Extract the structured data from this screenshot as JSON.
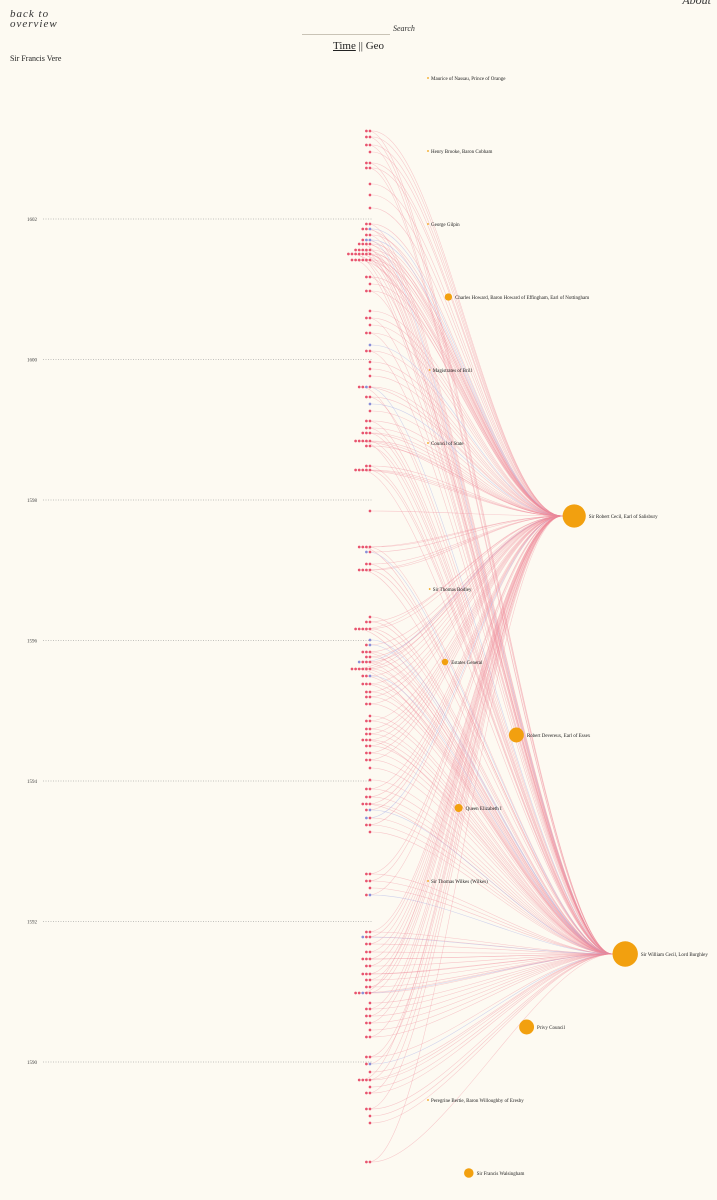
{
  "nav": {
    "back_label_line1": "back to",
    "back_label_line2": "overview",
    "about_label": "About"
  },
  "search": {
    "label": "Search",
    "value": "",
    "placeholder": ""
  },
  "view_toggle": {
    "time_label": "Time",
    "separator": "||",
    "geo_label": "Geo",
    "active": "Time"
  },
  "person": {
    "name": "Sir Francis Vere"
  },
  "timeline": {
    "years": [
      "1602",
      "1600",
      "1598",
      "1596",
      "1594",
      "1592",
      "1590"
    ]
  },
  "colors": {
    "letter_dot": "#e8546f",
    "letter_dot_alt": "#8a8fd8",
    "edge": "#f08a9a",
    "edge_alt": "#a9b0e8",
    "node": "#f2a00f",
    "gridline": "#888888",
    "background": "#fdfaf2"
  },
  "recipients": [
    {
      "name": "Maurice of Nassau, Prince of Orange",
      "weight": 0
    },
    {
      "name": "Henry Brooke, Baron Cobham",
      "weight": 0
    },
    {
      "name": "George Gilpin",
      "weight": 0
    },
    {
      "name": "Charles Howard, Baron Howard of Effingham, Earl of Nottingham",
      "weight": 2
    },
    {
      "name": "Magistrates of Brill",
      "weight": 0
    },
    {
      "name": "Council of State",
      "weight": 0
    },
    {
      "name": "Sir Robert Cecil, Earl of Salisbury",
      "weight": 80
    },
    {
      "name": "Sir Thomas Bodley",
      "weight": 0
    },
    {
      "name": "Estates General",
      "weight": 1
    },
    {
      "name": "Robert Devereux, Earl of Essex",
      "weight": 25
    },
    {
      "name": "Queen Elizabeth I",
      "weight": 3
    },
    {
      "name": "Sir Thomas Wilkes (Wilkes)",
      "weight": 0
    },
    {
      "name": "Sir William Cecil, Lord Burghley",
      "weight": 100
    },
    {
      "name": "Privy Council",
      "weight": 25
    },
    {
      "name": "Peregrine Bertie, Baron Willoughby of Eresby",
      "weight": 0
    },
    {
      "name": "Sir Francis Walsingham",
      "weight": 6
    }
  ]
}
